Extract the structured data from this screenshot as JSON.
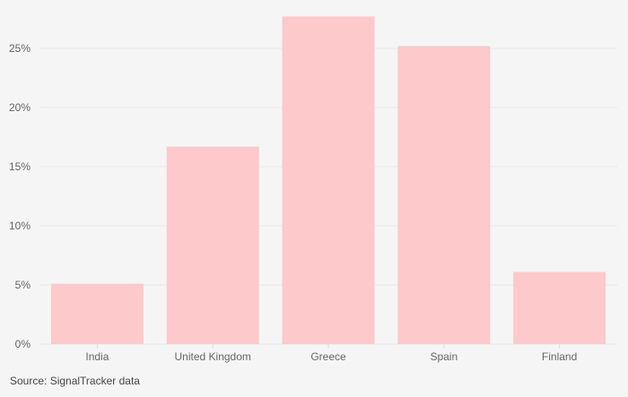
{
  "chart_data": {
    "type": "bar",
    "title": "",
    "xlabel": "",
    "ylabel": "",
    "categories": [
      "India",
      "United Kingdom",
      "Greece",
      "Spain",
      "Finland"
    ],
    "values": [
      5.1,
      16.7,
      27.7,
      25.2,
      6.1
    ],
    "unit": "%",
    "ylim": [
      0,
      28
    ],
    "yticks": [
      0,
      5,
      10,
      15,
      20,
      25
    ],
    "ytick_labels": [
      "0%",
      "5%",
      "10%",
      "15%",
      "20%",
      "25%"
    ],
    "grid": true,
    "bar_color": "#fdc9ca",
    "grid_color": "#e9e9e9"
  },
  "source": "Source: SignalTracker data"
}
